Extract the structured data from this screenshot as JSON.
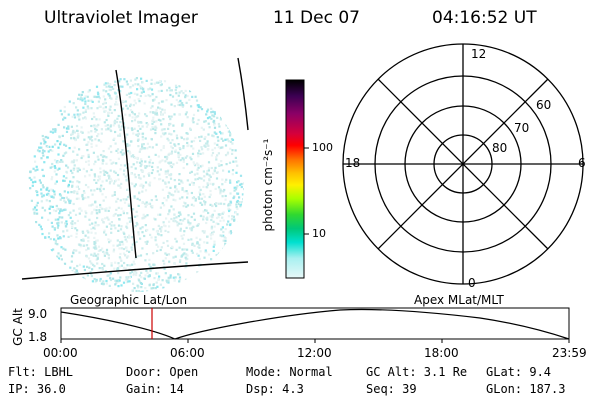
{
  "header": {
    "instrument": "Ultraviolet Imager",
    "date": "11 Dec 07",
    "time": "04:16:52 UT"
  },
  "colorbar": {
    "unit_label": "photon cm⁻²s⁻¹",
    "ticks": [
      "100",
      "10"
    ],
    "colors": [
      "#000000",
      "#3b0052",
      "#8b0066",
      "#c8004a",
      "#ff0000",
      "#ff6a00",
      "#ffbf00",
      "#fff000",
      "#b0ff00",
      "#40e000",
      "#00c060",
      "#00e0d0",
      "#a0f0f0",
      "#e0f8f8"
    ]
  },
  "polar_plot": {
    "mlt_labels": {
      "top": "12",
      "left": "18",
      "right": "6",
      "bottom": "0"
    },
    "lat_labels": [
      "60",
      "70",
      "80"
    ]
  },
  "timeline": {
    "ylabel": "GC Alt",
    "y_ticks": [
      "9.0",
      "1.8"
    ],
    "left_caption": "Geographic Lat/Lon",
    "right_caption": "Apex MLat/MLT",
    "x_ticks": [
      "00:00",
      "06:00",
      "12:00",
      "18:00",
      "23:59"
    ],
    "marker_time": "04:16:52"
  },
  "status": {
    "flt": "Flt: LBHL",
    "ip": "IP: 36.0",
    "door": "Door: Open",
    "gain": "Gain: 14",
    "mode": "Mode: Normal",
    "dsp": "Dsp:    4.3",
    "gcalt": "GC Alt: 3.1 Re",
    "seq": "Seq: 39",
    "glat": "GLat:   9.4",
    "glon": "GLon: 187.3"
  }
}
